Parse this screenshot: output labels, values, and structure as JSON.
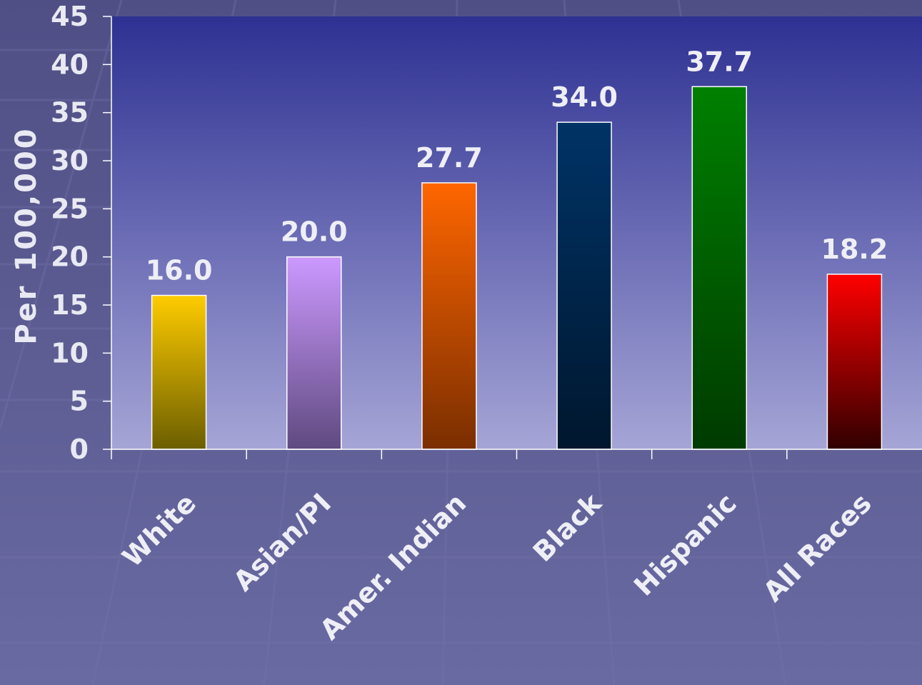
{
  "chart_data": {
    "type": "bar",
    "title": "",
    "xlabel": "",
    "ylabel": "Per 100,000",
    "categories": [
      "White",
      "Asian/PI",
      "Amer. Indian",
      "Black",
      "Hispanic",
      "All Races"
    ],
    "values": [
      16.0,
      20.0,
      27.7,
      34.0,
      37.7,
      18.2
    ],
    "value_labels": [
      "16.0",
      "20.0",
      "27.7",
      "34.0",
      "37.7",
      "18.2"
    ],
    "ylim": [
      0,
      45
    ],
    "yticks": [
      0,
      5,
      10,
      15,
      20,
      25,
      30,
      35,
      40,
      45
    ],
    "grid": false,
    "legend": "none",
    "colors": {
      "plot_top": "#2e3192",
      "plot_bottom": "#a5a5d6",
      "bars": [
        {
          "top": "#ffcc00",
          "bottom": "#6b5e00"
        },
        {
          "top": "#cc99ff",
          "bottom": "#5f4a80"
        },
        {
          "top": "#ff6600",
          "bottom": "#7a2e00"
        },
        {
          "top": "#003366",
          "bottom": "#00172e"
        },
        {
          "top": "#008000",
          "bottom": "#003a00"
        },
        {
          "top": "#ff0000",
          "bottom": "#300000"
        }
      ]
    }
  }
}
